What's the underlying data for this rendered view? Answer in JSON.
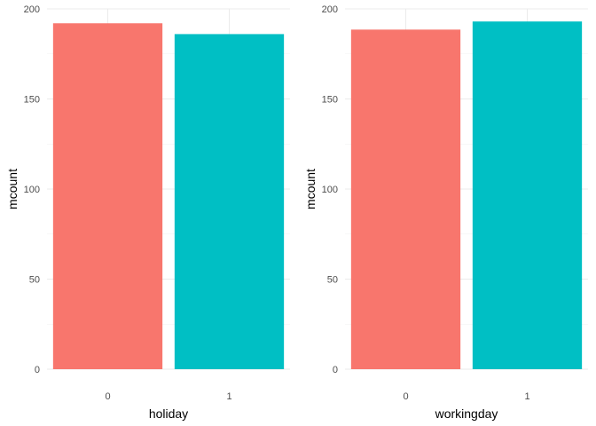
{
  "chart_data": [
    {
      "type": "bar",
      "categories": [
        "0",
        "1"
      ],
      "values": [
        192,
        186
      ],
      "xlabel": "holiday",
      "ylabel": "mcount",
      "ylim": [
        0,
        200
      ],
      "yticks": [
        0,
        50,
        100,
        150,
        200
      ],
      "grid": true,
      "legend": "none",
      "bar_colors": [
        "#F8766D",
        "#00BFC4"
      ]
    },
    {
      "type": "bar",
      "categories": [
        "0",
        "1"
      ],
      "values": [
        188.5,
        193
      ],
      "xlabel": "workingday",
      "ylabel": "mcount",
      "ylim": [
        0,
        200
      ],
      "yticks": [
        0,
        50,
        100,
        150,
        200
      ],
      "grid": true,
      "legend": "none",
      "bar_colors": [
        "#F8766D",
        "#00BFC4"
      ]
    }
  ]
}
